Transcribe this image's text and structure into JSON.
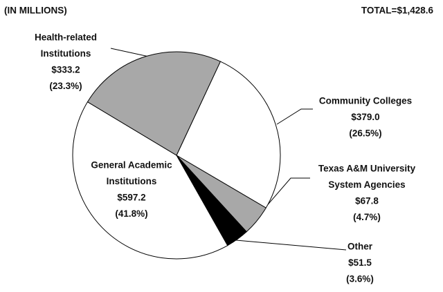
{
  "chart_data": {
    "type": "pie",
    "subtitle": "(IN MILLIONS)",
    "total_label": "TOTAL=$1,428.6",
    "categories": [
      [
        "Community Colleges"
      ],
      [
        "Texas A&M University",
        "System Agencies"
      ],
      [
        "Other"
      ],
      [
        "General Academic",
        "Institutions"
      ],
      [
        "Health-related",
        "Institutions"
      ]
    ],
    "values": [
      379.0,
      67.8,
      51.5,
      597.2,
      333.2
    ],
    "value_labels": [
      "$379.0",
      "$67.8",
      "$51.5",
      "$597.2",
      "$333.2"
    ],
    "percents": [
      26.5,
      4.7,
      3.6,
      41.8,
      23.3
    ],
    "percent_labels": [
      "(26.5%)",
      "(4.7%)",
      "(3.6%)",
      "(41.8%)",
      "(23.3%)"
    ],
    "colors": [
      "#ffffff",
      "#a8a8a8",
      "#000000",
      "#ffffff",
      "#a8a8a8"
    ]
  }
}
